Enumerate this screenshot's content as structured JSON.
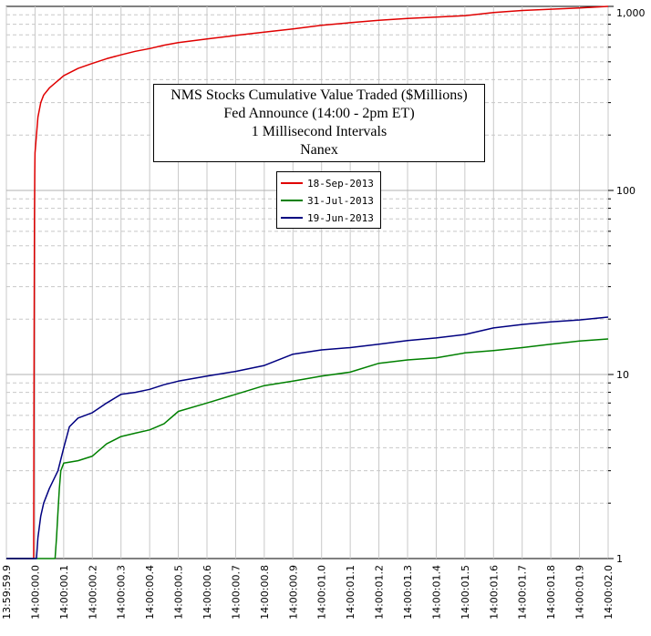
{
  "chart_data": {
    "type": "line",
    "title_lines": [
      "NMS Stocks Cumulative Value Traded ($Millions)",
      "Fed Announce (14:00 - 2pm ET)",
      "1 Millisecond Intervals",
      "Nanex"
    ],
    "xlabel": "",
    "ylabel": "",
    "y_scale": "log",
    "ylim": [
      1,
      1000
    ],
    "y_tick_labels": [
      {
        "value": 1,
        "label": "1"
      },
      {
        "value": 10,
        "label": "10"
      },
      {
        "value": 100,
        "label": "100"
      },
      {
        "value": 1000,
        "label": "1,000"
      }
    ],
    "xlim": [
      -0.1,
      2.0
    ],
    "x_tick_labels": [
      {
        "value": -0.1,
        "label": "13:59:59.9"
      },
      {
        "value": 0.0,
        "label": "14:00:00.0"
      },
      {
        "value": 0.1,
        "label": "14:00:00.1"
      },
      {
        "value": 0.2,
        "label": "14:00:00.2"
      },
      {
        "value": 0.3,
        "label": "14:00:00.3"
      },
      {
        "value": 0.4,
        "label": "14:00:00.4"
      },
      {
        "value": 0.5,
        "label": "14:00:00.5"
      },
      {
        "value": 0.6,
        "label": "14:00:00.6"
      },
      {
        "value": 0.7,
        "label": "14:00:00.7"
      },
      {
        "value": 0.8,
        "label": "14:00:00.8"
      },
      {
        "value": 0.9,
        "label": "14:00:00.9"
      },
      {
        "value": 1.0,
        "label": "14:00:01.0"
      },
      {
        "value": 1.1,
        "label": "14:00:01.1"
      },
      {
        "value": 1.2,
        "label": "14:00:01.2"
      },
      {
        "value": 1.3,
        "label": "14:00:01.3"
      },
      {
        "value": 1.4,
        "label": "14:00:01.4"
      },
      {
        "value": 1.5,
        "label": "14:00:01.5"
      },
      {
        "value": 1.6,
        "label": "14:00:01.6"
      },
      {
        "value": 1.7,
        "label": "14:00:01.7"
      },
      {
        "value": 1.8,
        "label": "14:00:01.8"
      },
      {
        "value": 1.9,
        "label": "14:00:01.9"
      },
      {
        "value": 2.0,
        "label": "14:00:02.0"
      }
    ],
    "grid": true,
    "legend_position": "upper-center",
    "series": [
      {
        "name": "18-Sep-2013",
        "color": "#e00000",
        "points": [
          [
            -0.1,
            1
          ],
          [
            -0.01,
            1
          ],
          [
            -0.005,
            1
          ],
          [
            -0.004,
            5
          ],
          [
            -0.003,
            20
          ],
          [
            -0.002,
            70
          ],
          [
            -0.001,
            120
          ],
          [
            0.0,
            160
          ],
          [
            0.005,
            200
          ],
          [
            0.01,
            250
          ],
          [
            0.02,
            300
          ],
          [
            0.03,
            330
          ],
          [
            0.05,
            360
          ],
          [
            0.1,
            420
          ],
          [
            0.15,
            460
          ],
          [
            0.2,
            490
          ],
          [
            0.25,
            520
          ],
          [
            0.3,
            545
          ],
          [
            0.35,
            570
          ],
          [
            0.4,
            590
          ],
          [
            0.45,
            615
          ],
          [
            0.5,
            635
          ],
          [
            0.6,
            665
          ],
          [
            0.7,
            695
          ],
          [
            0.8,
            725
          ],
          [
            0.9,
            755
          ],
          [
            1.0,
            790
          ],
          [
            1.1,
            815
          ],
          [
            1.2,
            840
          ],
          [
            1.3,
            860
          ],
          [
            1.4,
            875
          ],
          [
            1.5,
            890
          ],
          [
            1.6,
            925
          ],
          [
            1.7,
            950
          ],
          [
            1.8,
            965
          ],
          [
            1.9,
            980
          ],
          [
            2.0,
            1000
          ]
        ]
      },
      {
        "name": "31-Jul-2013",
        "color": "#008000",
        "points": [
          [
            -0.1,
            1
          ],
          [
            0.07,
            1
          ],
          [
            0.075,
            1.3
          ],
          [
            0.08,
            1.8
          ],
          [
            0.085,
            2.4
          ],
          [
            0.09,
            3.0
          ],
          [
            0.1,
            3.3
          ],
          [
            0.15,
            3.4
          ],
          [
            0.2,
            3.6
          ],
          [
            0.25,
            4.2
          ],
          [
            0.3,
            4.6
          ],
          [
            0.35,
            4.8
          ],
          [
            0.4,
            5.0
          ],
          [
            0.45,
            5.4
          ],
          [
            0.5,
            6.3
          ],
          [
            0.6,
            7.0
          ],
          [
            0.7,
            7.8
          ],
          [
            0.8,
            8.7
          ],
          [
            0.9,
            9.2
          ],
          [
            1.0,
            9.8
          ],
          [
            1.1,
            10.3
          ],
          [
            1.2,
            11.5
          ],
          [
            1.3,
            12.0
          ],
          [
            1.4,
            12.3
          ],
          [
            1.5,
            13.1
          ],
          [
            1.6,
            13.5
          ],
          [
            1.7,
            14.0
          ],
          [
            1.8,
            14.6
          ],
          [
            1.9,
            15.2
          ],
          [
            2.0,
            15.6
          ]
        ]
      },
      {
        "name": "19-Jun-2013",
        "color": "#000080",
        "points": [
          [
            -0.1,
            1
          ],
          [
            0.005,
            1
          ],
          [
            0.01,
            1.3
          ],
          [
            0.02,
            1.7
          ],
          [
            0.03,
            2.0
          ],
          [
            0.05,
            2.4
          ],
          [
            0.08,
            3.0
          ],
          [
            0.1,
            4.0
          ],
          [
            0.12,
            5.2
          ],
          [
            0.15,
            5.8
          ],
          [
            0.2,
            6.2
          ],
          [
            0.25,
            7.0
          ],
          [
            0.3,
            7.8
          ],
          [
            0.35,
            8.0
          ],
          [
            0.4,
            8.3
          ],
          [
            0.45,
            8.8
          ],
          [
            0.5,
            9.2
          ],
          [
            0.6,
            9.8
          ],
          [
            0.7,
            10.4
          ],
          [
            0.8,
            11.2
          ],
          [
            0.9,
            12.9
          ],
          [
            1.0,
            13.6
          ],
          [
            1.1,
            14.0
          ],
          [
            1.2,
            14.6
          ],
          [
            1.3,
            15.3
          ],
          [
            1.4,
            15.8
          ],
          [
            1.5,
            16.5
          ],
          [
            1.6,
            17.9
          ],
          [
            1.7,
            18.7
          ],
          [
            1.8,
            19.3
          ],
          [
            1.9,
            19.8
          ],
          [
            2.0,
            20.5
          ]
        ]
      }
    ]
  }
}
